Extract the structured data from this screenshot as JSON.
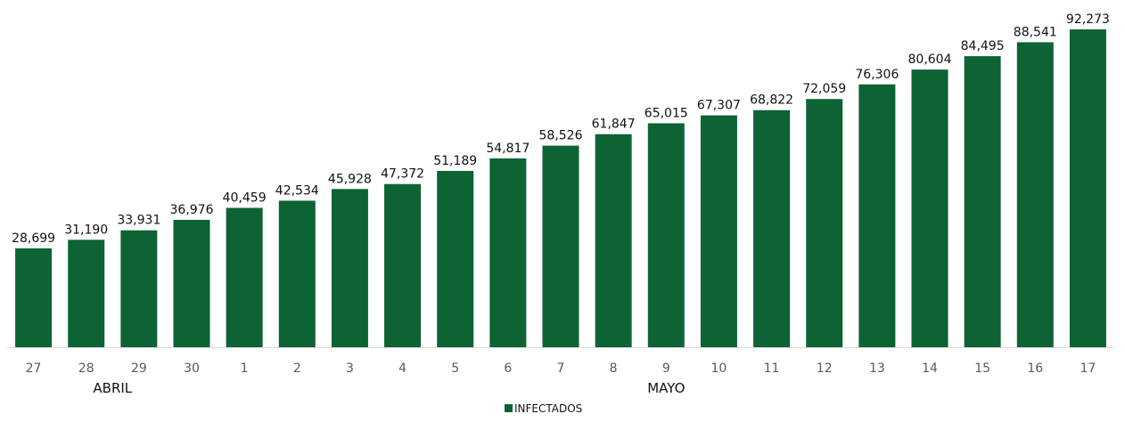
{
  "chart_data": {
    "type": "bar",
    "categories": [
      "27",
      "28",
      "29",
      "30",
      "1",
      "2",
      "3",
      "4",
      "5",
      "6",
      "7",
      "8",
      "9",
      "10",
      "11",
      "12",
      "13",
      "14",
      "15",
      "16",
      "17"
    ],
    "series": [
      {
        "name": "INFECTADOS",
        "values": [
          28699,
          31190,
          33931,
          36976,
          40459,
          42534,
          45928,
          47372,
          51189,
          54817,
          58526,
          61847,
          65015,
          67307,
          68822,
          72059,
          76306,
          80604,
          84495,
          88541,
          92273
        ],
        "value_labels": [
          "28,699",
          "31,190",
          "33,931",
          "36,976",
          "40,459",
          "42,534",
          "45,928",
          "47,372",
          "51,189",
          "54,817",
          "58,526",
          "61,847",
          "65,015",
          "67,307",
          "68,822",
          "72,059",
          "76,306",
          "80,604",
          "84,495",
          "88,541",
          "92,273"
        ],
        "color": "#0d6333"
      }
    ],
    "month_groups": [
      {
        "label": "ABRIL",
        "categories": [
          "27",
          "28",
          "29",
          "30"
        ]
      },
      {
        "label": "MAYO",
        "categories": [
          "1",
          "2",
          "3",
          "4",
          "5",
          "6",
          "7",
          "8",
          "9",
          "10",
          "11",
          "12",
          "13",
          "14",
          "15",
          "16",
          "17"
        ]
      }
    ],
    "ylim": [
      0,
      92273
    ],
    "grid": false,
    "legend_position": "bottom-center",
    "axis_color": "#d9d9d9",
    "tick_label_color": "#595959"
  }
}
